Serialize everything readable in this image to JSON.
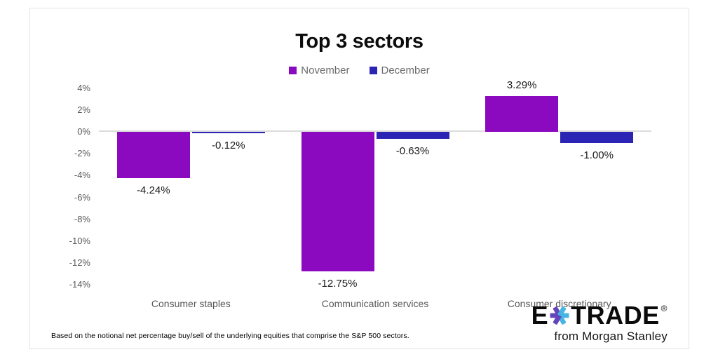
{
  "title": "Top 3 sectors",
  "legend": {
    "items": [
      {
        "label": "November",
        "color": "#8B09BE"
      },
      {
        "label": "December",
        "color": "#2B24B4"
      }
    ]
  },
  "chart_data": {
    "type": "bar",
    "title": "Top 3 sectors",
    "categories": [
      "Consumer staples",
      "Communication services",
      "Consumer discretionary"
    ],
    "series": [
      {
        "name": "November",
        "color": "#8B09BE",
        "values": [
          -4.24,
          -12.75,
          3.29
        ],
        "labels": [
          "-4.24%",
          "-12.75%",
          "3.29%"
        ]
      },
      {
        "name": "December",
        "color": "#2B24B4",
        "values": [
          -0.12,
          -0.63,
          -1.0
        ],
        "labels": [
          "-0.12%",
          "-0.63%",
          "-1.00%"
        ]
      }
    ],
    "y_tick_values": [
      4,
      2,
      0,
      -2,
      -4,
      -6,
      -8,
      -10,
      -12,
      -14
    ],
    "y_tick_labels": [
      "4%",
      "2%",
      "0%",
      "-2%",
      "-4%",
      "-6%",
      "-8%",
      "-10%",
      "-12%",
      "-14%"
    ],
    "ylim": [
      -14,
      4
    ],
    "unit": "%",
    "grid": "zero-line-only",
    "legend_position": "top"
  },
  "footnote": "Based on the notional net percentage buy/sell of the underlying equities that comprise the S&P 500 sectors.",
  "logo": {
    "brand_left": "E",
    "brand_right": "TRADE",
    "registered_mark": "®",
    "tagline": "from Morgan Stanley",
    "star_left_color": "#6244BB",
    "star_right_color": "#47B5E3"
  },
  "colors": {
    "axis_text": "#595959",
    "zero_line": "#dcdcdc",
    "data_label": "#1a1a1a",
    "panel_border": "#e3e3e3"
  }
}
